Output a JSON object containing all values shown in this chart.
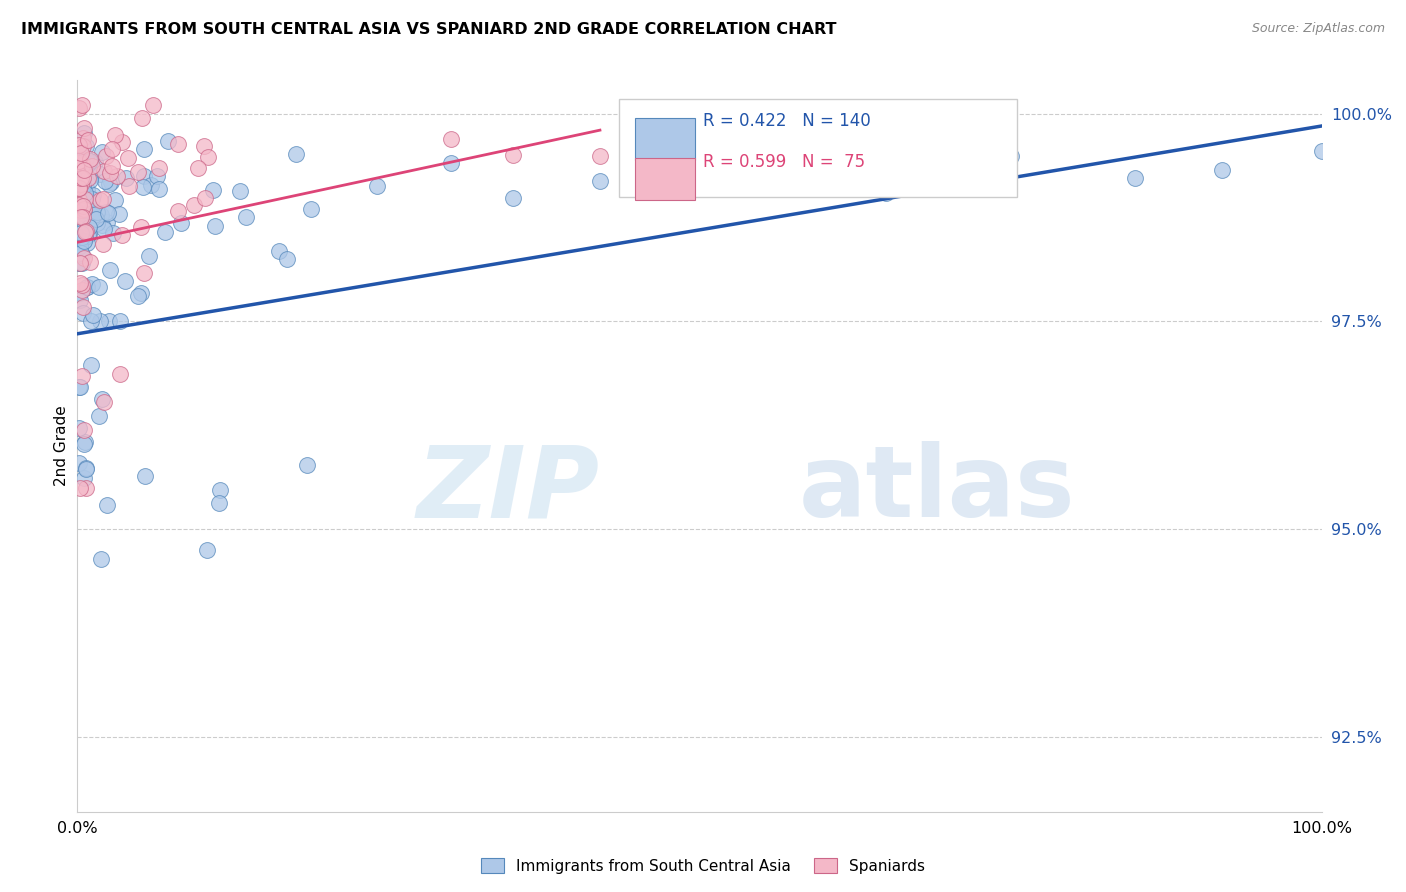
{
  "title": "IMMIGRANTS FROM SOUTH CENTRAL ASIA VS SPANIARD 2ND GRADE CORRELATION CHART",
  "source": "Source: ZipAtlas.com",
  "ylabel": "2nd Grade",
  "xlim": [
    0.0,
    1.0
  ],
  "ylim": [
    0.916,
    1.004
  ],
  "blue_R": 0.422,
  "blue_N": 140,
  "pink_R": 0.599,
  "pink_N": 75,
  "blue_color": "#aec8e8",
  "pink_color": "#f4b8c8",
  "blue_edge_color": "#5588bb",
  "pink_edge_color": "#cc6688",
  "blue_line_color": "#2255aa",
  "pink_line_color": "#dd4477",
  "legend_label_blue": "Immigrants from South Central Asia",
  "legend_label_pink": "Spaniards",
  "watermark_zip": "ZIP",
  "watermark_atlas": "atlas",
  "yticks": [
    0.925,
    0.95,
    0.975,
    1.0
  ],
  "ytick_labels": [
    "92.5%",
    "95.0%",
    "97.5%",
    "100.0%"
  ]
}
